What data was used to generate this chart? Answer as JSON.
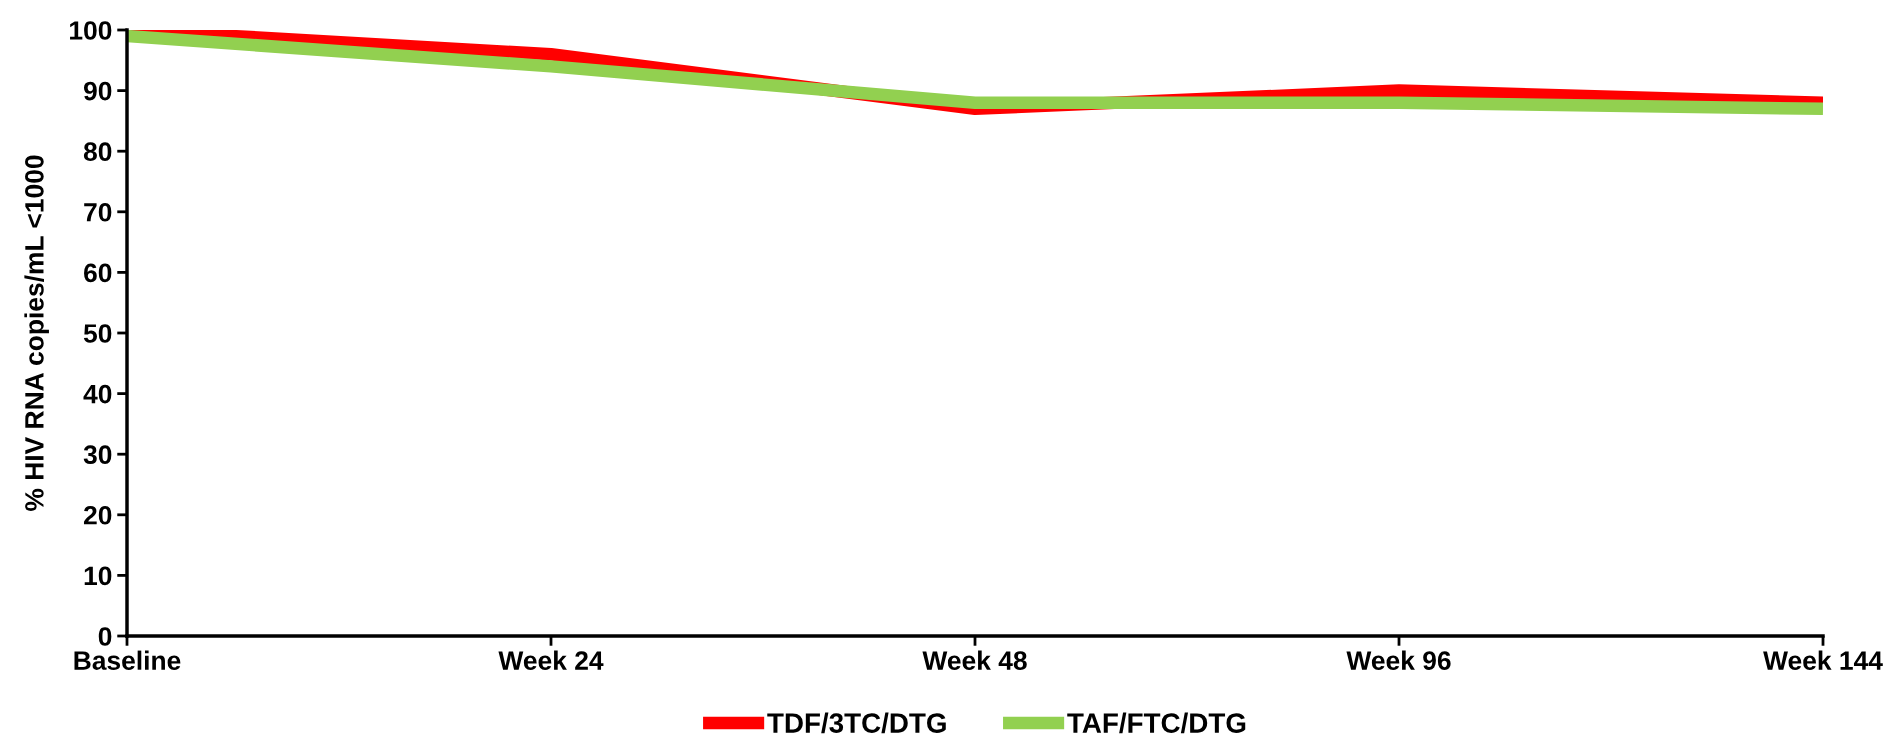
{
  "chart_data": {
    "type": "line",
    "ylabel": "% HIV RNA copies/mL <1000",
    "categories": [
      "Baseline",
      "Week 24",
      "Week 48",
      "Week 96",
      "Week 144"
    ],
    "series": [
      {
        "name": "TDF/3TC/DTG",
        "color": "#ff0000",
        "values": [
          100,
          96,
          87,
          90,
          88
        ]
      },
      {
        "name": "TAF/FTC/DTG",
        "color": "#92d050",
        "values": [
          99,
          94,
          88,
          88,
          87
        ]
      }
    ],
    "ylim": [
      0,
      100
    ],
    "yticks": [
      0,
      10,
      20,
      30,
      40,
      50,
      60,
      70,
      80,
      90,
      100
    ],
    "grid": false,
    "legend": "bottom",
    "marker": "none",
    "line_style": "solid"
  }
}
